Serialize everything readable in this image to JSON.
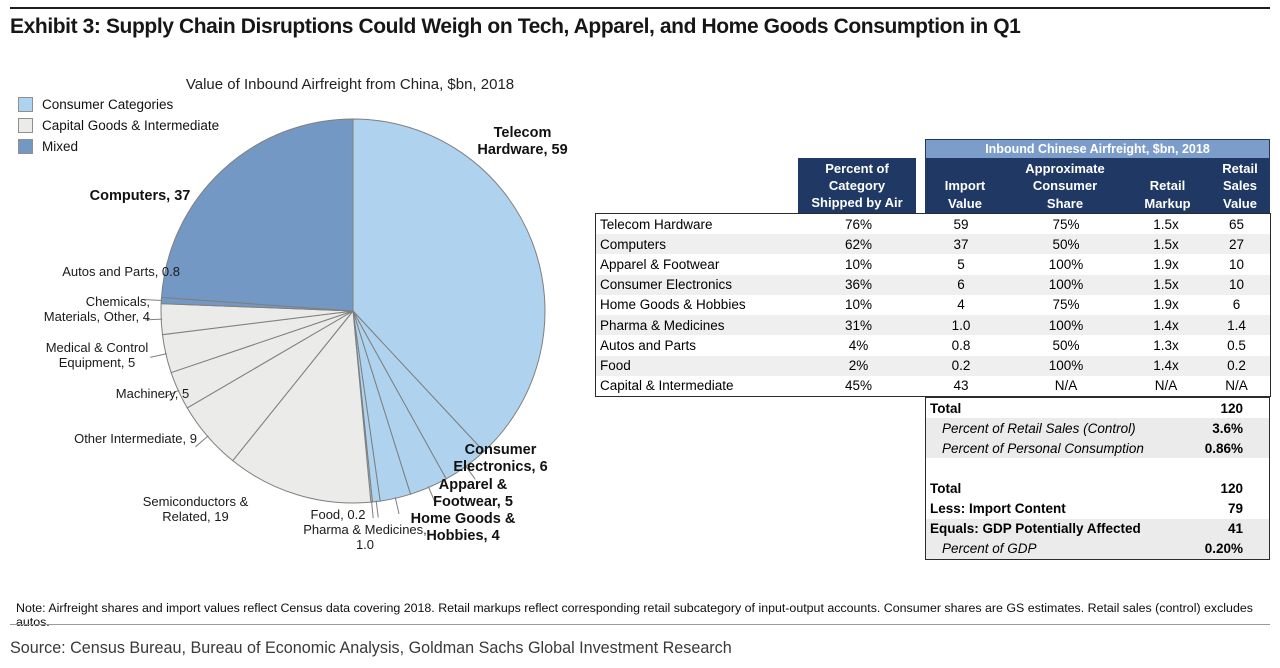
{
  "header": {
    "title": "Exhibit 3: Supply Chain Disruptions Could Weigh on Tech, Apparel, and Home Goods Consumption in Q1"
  },
  "chart_data": {
    "type": "pie",
    "title": "Value of Inbound Airfreight from China, $bn, 2018",
    "units": "$bn",
    "direction": "clockwise",
    "start_angle_deg": 0,
    "total": 155,
    "groups": [
      {
        "name": "Consumer Categories",
        "color": "#AFD3EE"
      },
      {
        "name": "Capital Goods & Intermediate",
        "color": "#EBEBE9"
      },
      {
        "name": "Mixed",
        "color": "#7498C4"
      }
    ],
    "slices": [
      {
        "label": "Telecom Hardware",
        "value": 59,
        "group": "Consumer Categories",
        "display": "Telecom\nHardware, 59"
      },
      {
        "label": "Consumer Electronics",
        "value": 6,
        "group": "Consumer Categories",
        "display": "Consumer\nElectronics, 6"
      },
      {
        "label": "Apparel & Footwear",
        "value": 5,
        "group": "Consumer Categories",
        "display": "Apparel &\nFootwear, 5"
      },
      {
        "label": "Home Goods & Hobbies",
        "value": 4,
        "group": "Consumer Categories",
        "display": "Home Goods &\nHobbies, 4"
      },
      {
        "label": "Pharma & Medicines",
        "value": 1.0,
        "group": "Consumer Categories",
        "display": "Pharma & Medicines,\n1.0"
      },
      {
        "label": "Food",
        "value": 0.2,
        "group": "Consumer Categories",
        "display": "Food, 0.2"
      },
      {
        "label": "Semiconductors & Related",
        "value": 19,
        "group": "Capital Goods & Intermediate",
        "display": "Semiconductors &\nRelated, 19"
      },
      {
        "label": "Other Intermediate",
        "value": 9,
        "group": "Capital Goods & Intermediate",
        "display": "Other Intermediate, 9"
      },
      {
        "label": "Machinery",
        "value": 5,
        "group": "Capital Goods & Intermediate",
        "display": "Machinery, 5"
      },
      {
        "label": "Medical & Control Equipment",
        "value": 5,
        "group": "Capital Goods & Intermediate",
        "display": "Medical & Control\nEquipment, 5"
      },
      {
        "label": "Chemicals, Materials, Other",
        "value": 4,
        "group": "Capital Goods & Intermediate",
        "display": "Chemicals,\nMaterials, Other, 4"
      },
      {
        "label": "Autos and Parts",
        "value": 0.8,
        "group": "Mixed",
        "display": "Autos and Parts, 0.8"
      },
      {
        "label": "Computers",
        "value": 37,
        "group": "Mixed",
        "display": "Computers, 37"
      }
    ]
  },
  "table": {
    "band_title": "Inbound Chinese Airfreight, $bn, 2018",
    "col_shipped": "Percent of\nCategory\nShipped by Air",
    "columns": {
      "import": "Import\nValue",
      "share": "Approximate\nConsumer\nShare",
      "markup": "Retail\nMarkup",
      "retail": "Retail Sales\nValue"
    },
    "rows": [
      {
        "category": "Telecom Hardware",
        "shipped": "76%",
        "import": "59",
        "share": "75%",
        "markup": "1.5x",
        "retail": "65"
      },
      {
        "category": "Computers",
        "shipped": "62%",
        "import": "37",
        "share": "50%",
        "markup": "1.5x",
        "retail": "27"
      },
      {
        "category": "Apparel & Footwear",
        "shipped": "10%",
        "import": "5",
        "share": "100%",
        "markup": "1.9x",
        "retail": "10"
      },
      {
        "category": "Consumer Electronics",
        "shipped": "36%",
        "import": "6",
        "share": "100%",
        "markup": "1.5x",
        "retail": "10"
      },
      {
        "category": "Home Goods & Hobbies",
        "shipped": "10%",
        "import": "4",
        "share": "75%",
        "markup": "1.9x",
        "retail": "6"
      },
      {
        "category": "Pharma & Medicines",
        "shipped": "31%",
        "import": "1.0",
        "share": "100%",
        "markup": "1.4x",
        "retail": "1.4"
      },
      {
        "category": "Autos and Parts",
        "shipped": "4%",
        "import": "0.8",
        "share": "50%",
        "markup": "1.3x",
        "retail": "0.5"
      },
      {
        "category": "Food",
        "shipped": "2%",
        "import": "0.2",
        "share": "100%",
        "markup": "1.4x",
        "retail": "0.2"
      },
      {
        "category": "Capital & Intermediate",
        "shipped": "45%",
        "import": "43",
        "share": "N/A",
        "markup": "N/A",
        "retail": "N/A"
      }
    ],
    "summary": [
      {
        "label": "Total",
        "value": "120"
      },
      {
        "label": "Percent of Retail Sales (Control)",
        "value": "3.6%"
      },
      {
        "label": "Percent of Personal Consumption",
        "value": "0.86%"
      },
      {
        "label": "",
        "value": ""
      },
      {
        "label": "Total",
        "value": "120"
      },
      {
        "label": "Less: Import Content",
        "value": "79"
      },
      {
        "label": "Equals: GDP Potentially Affected",
        "value": "41"
      },
      {
        "label": "Percent of GDP",
        "value": "0.20%"
      }
    ]
  },
  "footer": {
    "note": "Note: Airfreight shares and import values reflect Census data covering 2018.  Retail markups reflect corresponding retail subcategory of input-output accounts. Consumer shares are GS estimates. Retail sales (control) excludes autos.",
    "source": "Source: Census Bureau, Bureau of Economic Analysis, Goldman Sachs Global Investment Research"
  }
}
